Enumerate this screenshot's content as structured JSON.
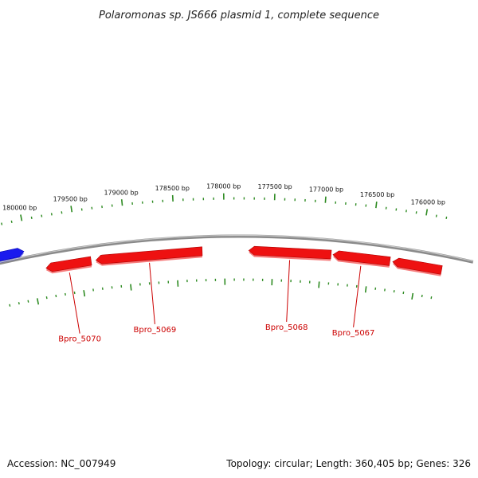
{
  "title": "Polaromonas sp. JS666 plasmid 1, complete sequence",
  "footer": {
    "accession": "Accession: NC_007949",
    "summary": "Topology: circular; Length: 360,405 bp; Genes: 326"
  },
  "colors": {
    "backbone": "#8a8a8a",
    "tick": "#2e8b22",
    "reverse_gene": "#ee1111",
    "forward_gene": "#1a1aee",
    "gene_label": "#cc0000"
  },
  "axis": {
    "start_bp": 180300,
    "end_bp": 175750,
    "major_step_bp": 500,
    "minor_step_bp": 100,
    "tick_labels": [
      "180000 bp",
      "179500 bp",
      "179000 bp",
      "178500 bp",
      "178000 bp",
      "177500 bp",
      "177000 bp",
      "176500 bp",
      "176000 bp"
    ]
  },
  "genes": [
    {
      "name": "",
      "strand": "forward",
      "start_bp": 180300,
      "end_bp": 180040
    },
    {
      "name": "Bpro_5070",
      "strand": "reverse",
      "start_bp": 179850,
      "end_bp": 179380
    },
    {
      "name": "Bpro_5069",
      "strand": "reverse",
      "start_bp": 179330,
      "end_bp": 178230
    },
    {
      "name": "Bpro_5068",
      "strand": "reverse",
      "start_bp": 177750,
      "end_bp": 176900
    },
    {
      "name": "Bpro_5067",
      "strand": "reverse",
      "start_bp": 176880,
      "end_bp": 176290
    },
    {
      "name": "",
      "strand": "reverse",
      "start_bp": 176260,
      "end_bp": 175750
    }
  ]
}
